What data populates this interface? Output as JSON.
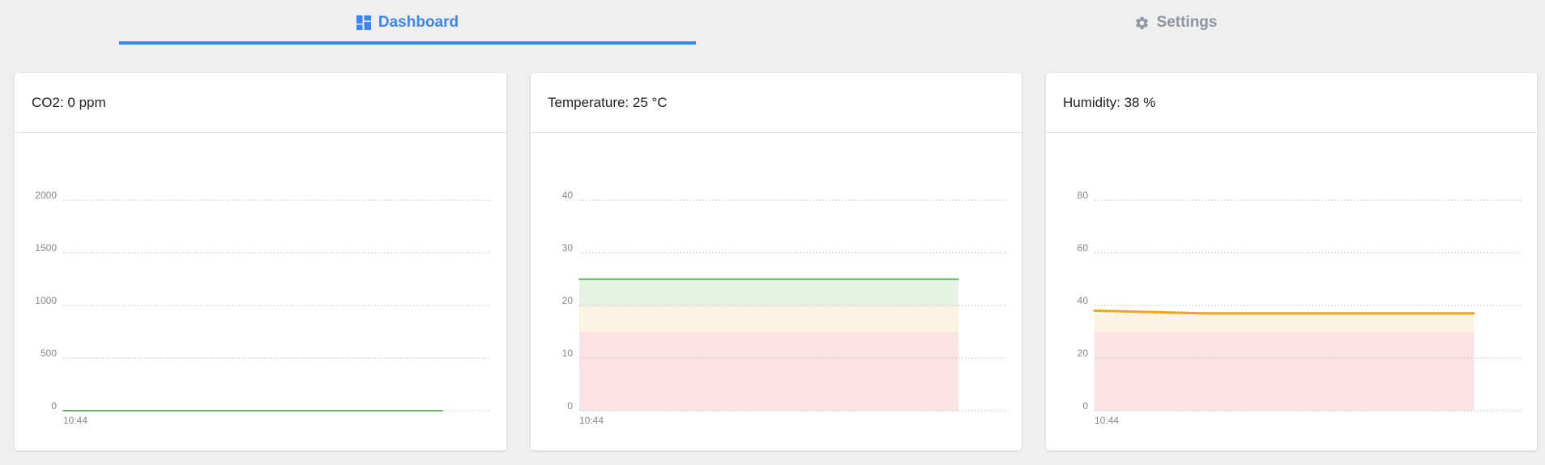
{
  "tabs": {
    "dashboard_label": "Dashboard",
    "settings_label": "Settings",
    "active_color": "#3b86f0",
    "inactive_color": "#8d96a0"
  },
  "cards": [
    {
      "title": "CO2: 0 ppm"
    },
    {
      "title": "Temperature: 25 °C"
    },
    {
      "title": "Humidity: 38 %"
    }
  ],
  "chart_data": [
    {
      "type": "line",
      "title": "",
      "ylim": [
        0,
        2000
      ],
      "yticks": [
        "2000",
        "1500",
        "1000",
        "500",
        "0"
      ],
      "xticks": [
        "10:44"
      ],
      "grid": true,
      "series": [
        {
          "values": [
            0,
            0
          ],
          "color": "#3a9a3a"
        }
      ],
      "bands": []
    },
    {
      "type": "area",
      "title": "",
      "ylim": [
        0,
        40
      ],
      "yticks": [
        "40",
        "30",
        "20",
        "10",
        "0"
      ],
      "xticks": [
        "10:44"
      ],
      "grid": true,
      "series": [
        {
          "values": [
            25,
            25
          ],
          "color": "#3a9a3a"
        }
      ],
      "bands": [
        {
          "from": 0,
          "to": 15,
          "color": "#fde2e3"
        },
        {
          "from": 15,
          "to": 20,
          "color": "#fdf3e2"
        },
        {
          "from": 20,
          "to": 25,
          "color": "#e5f2e4"
        }
      ]
    },
    {
      "type": "area",
      "title": "",
      "ylim": [
        0,
        80
      ],
      "yticks": [
        "80",
        "60",
        "40",
        "20",
        "0"
      ],
      "xticks": [
        "10:44"
      ],
      "grid": true,
      "series": [
        {
          "values": [
            38,
            37.5,
            37,
            37,
            37,
            37,
            37,
            37
          ],
          "color": "#f4a31f"
        }
      ],
      "bands": [
        {
          "from": 0,
          "to": 30,
          "color": "#fde2e3"
        },
        {
          "from": 30,
          "to": 37,
          "color": "#fdf3e2"
        }
      ]
    }
  ]
}
